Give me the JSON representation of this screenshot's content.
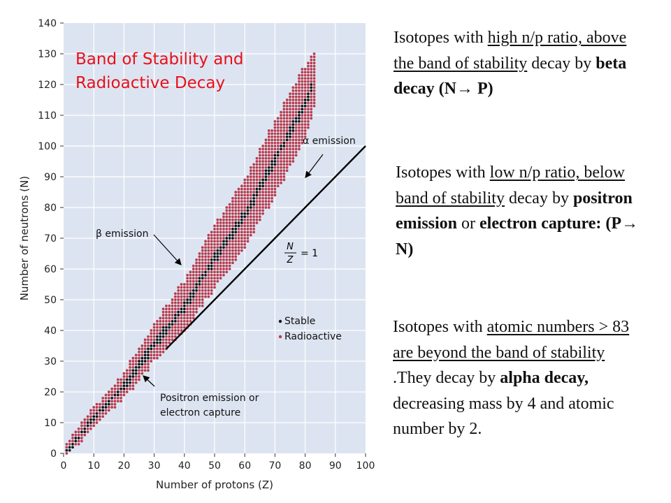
{
  "chart_data": {
    "type": "scatter",
    "title": "Band of Stability and Radioactive Decay",
    "title_lines": [
      "Band of Stability and",
      "Radioactive Decay"
    ],
    "xlabel": "Number of protons (Z)",
    "ylabel": "Number of neutrons (N)",
    "xlim": [
      0,
      100
    ],
    "ylim": [
      0,
      140
    ],
    "xticks": [
      "0",
      "10",
      "20",
      "30",
      "40",
      "50",
      "60",
      "70",
      "80",
      "90",
      "100"
    ],
    "yticks": [
      "0",
      "10",
      "20",
      "30",
      "40",
      "50",
      "60",
      "70",
      "80",
      "90",
      "100",
      "110",
      "120",
      "130",
      "140"
    ],
    "legend": {
      "position": "right-middle",
      "items": [
        {
          "name": "Stable",
          "color": "#111111"
        },
        {
          "name": "Radioactive",
          "color": "#b83a4b"
        }
      ]
    },
    "colors": {
      "panel_bg": "#dde4f1",
      "grid": "#ffffff",
      "radioactive": "#b83a4b",
      "stable": "#111111",
      "title": "#e8101a"
    },
    "band_centerline": [
      [
        1,
        1
      ],
      [
        10,
        12
      ],
      [
        20,
        22
      ],
      [
        30,
        36
      ],
      [
        40,
        48
      ],
      [
        50,
        64
      ],
      [
        60,
        78
      ],
      [
        70,
        96
      ],
      [
        80,
        114
      ],
      [
        83,
        122
      ]
    ],
    "band_half_width_N": [
      [
        1,
        1
      ],
      [
        10,
        2
      ],
      [
        20,
        3
      ],
      [
        30,
        5
      ],
      [
        40,
        7
      ],
      [
        50,
        9
      ],
      [
        60,
        10
      ],
      [
        70,
        11
      ],
      [
        80,
        11
      ],
      [
        83,
        8
      ]
    ],
    "reference_line": {
      "label_num": "N",
      "label_den": "Z",
      "label_eq": "= 1",
      "from": [
        34,
        34
      ],
      "to": [
        100,
        100
      ]
    },
    "annotations": [
      {
        "id": "alpha",
        "greek": "α",
        "text": " emission"
      },
      {
        "id": "beta",
        "greek": "β",
        "text": " emission"
      },
      {
        "id": "positron",
        "lines": [
          "Positron emission or",
          "electron capture"
        ]
      }
    ]
  },
  "notes": [
    {
      "id": "high",
      "runs": [
        {
          "t": "Isotopes with "
        },
        {
          "t": "high n/p ratio, above the band of stability",
          "u": true
        },
        {
          "t": " decay by "
        },
        {
          "t": "beta decay (N",
          "b": true
        },
        {
          "t": "→",
          "b": true
        },
        {
          "t": " P)",
          "b": true
        }
      ]
    },
    {
      "id": "low",
      "runs": [
        {
          "t": "Isotopes with "
        },
        {
          "t": "low n/p ratio, below band of stability",
          "u": true
        },
        {
          "t": " decay by "
        },
        {
          "t": "positron emission",
          "b": true
        },
        {
          "t": " or "
        },
        {
          "t": "electron capture:",
          "b": true
        },
        {
          "t": "  (P",
          "b": true
        },
        {
          "t": "→",
          "b": true
        },
        {
          "t": " N)",
          "b": true
        }
      ]
    },
    {
      "id": "heavy",
      "runs": [
        {
          "t": "Isotopes with "
        },
        {
          "t": "atomic numbers > 83  are beyond the band of stability",
          "u": true
        },
        {
          "t": " .They decay by "
        },
        {
          "t": "alpha decay,",
          "b": true
        },
        {
          "t": " decreasing mass by 4 and atomic number by 2."
        }
      ]
    }
  ]
}
